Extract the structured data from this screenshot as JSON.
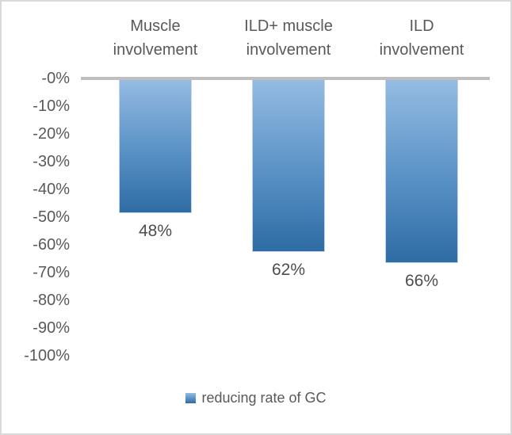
{
  "chart_data": {
    "type": "bar",
    "title": "",
    "categories": [
      "Muscle involvement",
      "ILD+ muscle involvement",
      "ILD involvement"
    ],
    "category_lines": [
      [
        "Muscle",
        "involvement"
      ],
      [
        "ILD+ muscle",
        "involvement"
      ],
      [
        "ILD",
        "involvement"
      ]
    ],
    "series": [
      {
        "name": "reducing rate of GC",
        "values": [
          -48,
          -62,
          -66
        ]
      }
    ],
    "data_labels": [
      "48%",
      "62%",
      "66%"
    ],
    "y_ticks": [
      "-0%",
      "-10%",
      "-20%",
      "-30%",
      "-40%",
      "-50%",
      "-60%",
      "-70%",
      "-80%",
      "-90%",
      "-100%"
    ],
    "ylim": [
      -100,
      0
    ],
    "xlabel": "",
    "ylabel": "",
    "grid": false,
    "legend_position": "bottom",
    "colors": {
      "bar_gradient_top": "#95bbe2",
      "bar_gradient_mid": "#5b93c7",
      "bar_gradient_bottom": "#2e6ca4",
      "axis_line": "#bfbfbf",
      "text": "#595959",
      "data_label_text": "#4d4d4d",
      "frame_border": "#d9d9d9"
    }
  }
}
